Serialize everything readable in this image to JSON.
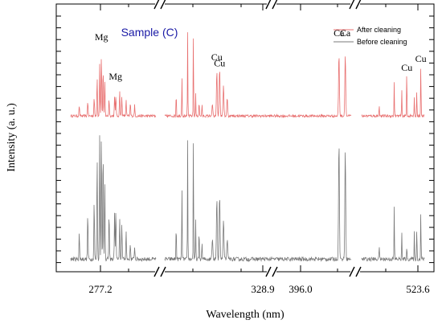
{
  "chart_data": {
    "type": "line",
    "title": "Sample (C)",
    "xlabel": "Wavelength (nm)",
    "ylabel": "Intensity (a. u.)",
    "x_tick_labels": [
      "277.2",
      "328.9",
      "396.0",
      "523.6"
    ],
    "axis_breaks": 3,
    "grid": false,
    "legend_position": "top-right",
    "y_scale": "arbitrary units",
    "series": [
      {
        "name": "After cleaning",
        "color": "#e87070",
        "y_range": [
          0.05,
          1.0
        ]
      },
      {
        "name": "Before cleaning",
        "color": "#7a7a7a",
        "y_range": [
          0.05,
          1.0
        ]
      }
    ],
    "segments": [
      {
        "x_range": [
          270.0,
          290.0
        ],
        "peaks_after": [
          [
            272.0,
            0.12
          ],
          [
            274.0,
            0.18
          ],
          [
            275.5,
            0.22
          ],
          [
            276.2,
            0.45
          ],
          [
            276.8,
            0.6
          ],
          [
            277.2,
            0.72
          ],
          [
            277.6,
            0.55
          ],
          [
            278.0,
            0.4
          ],
          [
            279.0,
            0.2
          ],
          [
            280.3,
            0.22
          ],
          [
            280.6,
            0.25
          ],
          [
            281.5,
            0.3
          ],
          [
            282.0,
            0.22
          ],
          [
            283.0,
            0.18
          ],
          [
            284.0,
            0.15
          ],
          [
            285.0,
            0.12
          ]
        ],
        "peaks_before": [
          [
            272.0,
            0.2
          ],
          [
            274.0,
            0.35
          ],
          [
            275.5,
            0.45
          ],
          [
            276.2,
            0.8
          ],
          [
            276.8,
            0.95
          ],
          [
            277.2,
            0.98
          ],
          [
            277.6,
            0.85
          ],
          [
            278.0,
            0.6
          ],
          [
            279.0,
            0.35
          ],
          [
            280.3,
            0.35
          ],
          [
            280.6,
            0.38
          ],
          [
            281.5,
            0.3
          ],
          [
            282.0,
            0.28
          ],
          [
            283.0,
            0.22
          ],
          [
            284.0,
            0.12
          ],
          [
            285.0,
            0.1
          ]
        ],
        "labels": [
          {
            "text": "Mg",
            "x": 277.2,
            "y": 0.85
          },
          {
            "text": "Mg",
            "x": 280.5,
            "y": 0.4
          }
        ]
      },
      {
        "x_range": [
          322.0,
          330.0
        ],
        "peaks_after": [
          [
            324.0,
            0.3
          ],
          [
            325.0,
            0.5
          ],
          [
            326.0,
            0.95
          ],
          [
            327.0,
            1.0
          ],
          [
            327.4,
            0.25
          ],
          [
            328.0,
            0.2
          ],
          [
            328.5,
            0.15
          ]
        ],
        "peaks_before": [
          [
            324.0,
            0.3
          ],
          [
            325.0,
            0.6
          ],
          [
            326.0,
            0.9
          ],
          [
            327.0,
            1.0
          ],
          [
            327.4,
            0.3
          ],
          [
            328.0,
            0.25
          ],
          [
            328.5,
            0.15
          ]
        ],
        "labels": []
      },
      {
        "x_range": [
          324.0,
          400.0
        ],
        "peaks_after": [
          [
            325.0,
            0.15
          ],
          [
            327.4,
            0.52
          ],
          [
            328.9,
            0.55
          ],
          [
            331.0,
            0.35
          ],
          [
            333.0,
            0.2
          ],
          [
            393.4,
            0.72
          ],
          [
            396.8,
            0.72
          ]
        ],
        "peaks_before": [
          [
            325.0,
            0.15
          ],
          [
            327.4,
            0.45
          ],
          [
            328.9,
            0.5
          ],
          [
            331.0,
            0.3
          ],
          [
            333.0,
            0.15
          ],
          [
            393.4,
            0.9
          ],
          [
            396.8,
            0.85
          ]
        ],
        "labels": [
          {
            "text": "Cu",
            "x": 327.4,
            "y": 0.62
          },
          {
            "text": "Cu",
            "x": 328.9,
            "y": 0.55
          },
          {
            "text": "Ca",
            "x": 393.4,
            "y": 0.9
          },
          {
            "text": "Ca",
            "x": 396.8,
            "y": 0.9
          }
        ]
      },
      {
        "x_range": [
          500.0,
          525.0
        ],
        "peaks_after": [
          [
            507.0,
            0.15
          ],
          [
            513.0,
            0.4
          ],
          [
            516.0,
            0.3
          ],
          [
            518.0,
            0.55
          ],
          [
            521.0,
            0.2
          ],
          [
            522.0,
            0.3
          ],
          [
            523.6,
            0.6
          ]
        ],
        "peaks_before": [
          [
            507.0,
            0.12
          ],
          [
            513.0,
            0.4
          ],
          [
            516.0,
            0.2
          ],
          [
            518.0,
            0.1
          ],
          [
            521.0,
            0.2
          ],
          [
            522.0,
            0.25
          ],
          [
            523.6,
            0.38
          ]
        ],
        "labels": [
          {
            "text": "Cu",
            "x": 518.0,
            "y": 0.5
          },
          {
            "text": "Cu",
            "x": 523.6,
            "y": 0.6
          }
        ]
      }
    ]
  }
}
